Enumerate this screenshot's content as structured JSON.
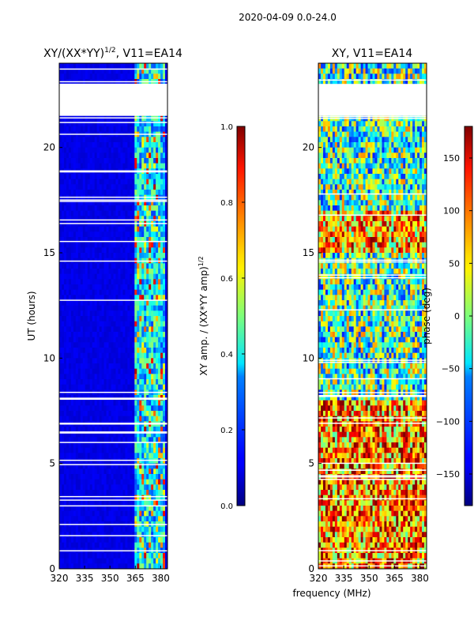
{
  "figure_title": "2020-04-09 0.0-24.0",
  "xlabel_shared": "frequency (MHz)",
  "chart_data": [
    {
      "type": "heatmap",
      "title": "XY/(XX*YY)^1/2, V11=EA14",
      "title_main": "XY/(XX*YY)",
      "title_sup": "1/2",
      "title_tail": ", V11=EA14",
      "xlabel": "frequency (MHz)",
      "ylabel": "UT (hours)",
      "xlim": [
        320,
        384
      ],
      "ylim": [
        0,
        24
      ],
      "xticks": [
        320,
        335,
        350,
        365,
        380
      ],
      "yticks": [
        0,
        5,
        10,
        15,
        20
      ],
      "colorbar": {
        "label": "XY amp. / (XX*YY amp)^1/2",
        "label_main": "XY amp. / (XX*YY amp)",
        "label_sup": "1/2",
        "range": [
          0.0,
          1.0
        ],
        "ticks": [
          "0.0",
          "0.2",
          "0.4",
          "0.6",
          "0.8",
          "1.0"
        ],
        "tick_values": [
          0.0,
          0.2,
          0.4,
          0.6,
          0.8,
          1.0
        ]
      },
      "colormap": "jet",
      "rfi_band_mhz": [
        364,
        382
      ],
      "blank_ut_hours": [
        21.5,
        23.0
      ]
    },
    {
      "type": "heatmap",
      "title": "XY, V11=EA14",
      "xlabel": "frequency (MHz)",
      "ylabel": "",
      "xlim": [
        320,
        384
      ],
      "ylim": [
        0,
        24
      ],
      "xticks": [
        320,
        335,
        350,
        365,
        380
      ],
      "yticks": [
        0,
        5,
        10,
        15,
        20
      ],
      "colorbar": {
        "label": "phase (deg)",
        "range": [
          -180,
          180
        ],
        "ticks": [
          "−150",
          "−100",
          "−50",
          "0",
          "50",
          "100",
          "150"
        ],
        "tick_values": [
          -150,
          -100,
          -50,
          0,
          50,
          100,
          150
        ]
      },
      "colormap": "jet",
      "blank_ut_hours": [
        21.5,
        23.0
      ]
    }
  ]
}
